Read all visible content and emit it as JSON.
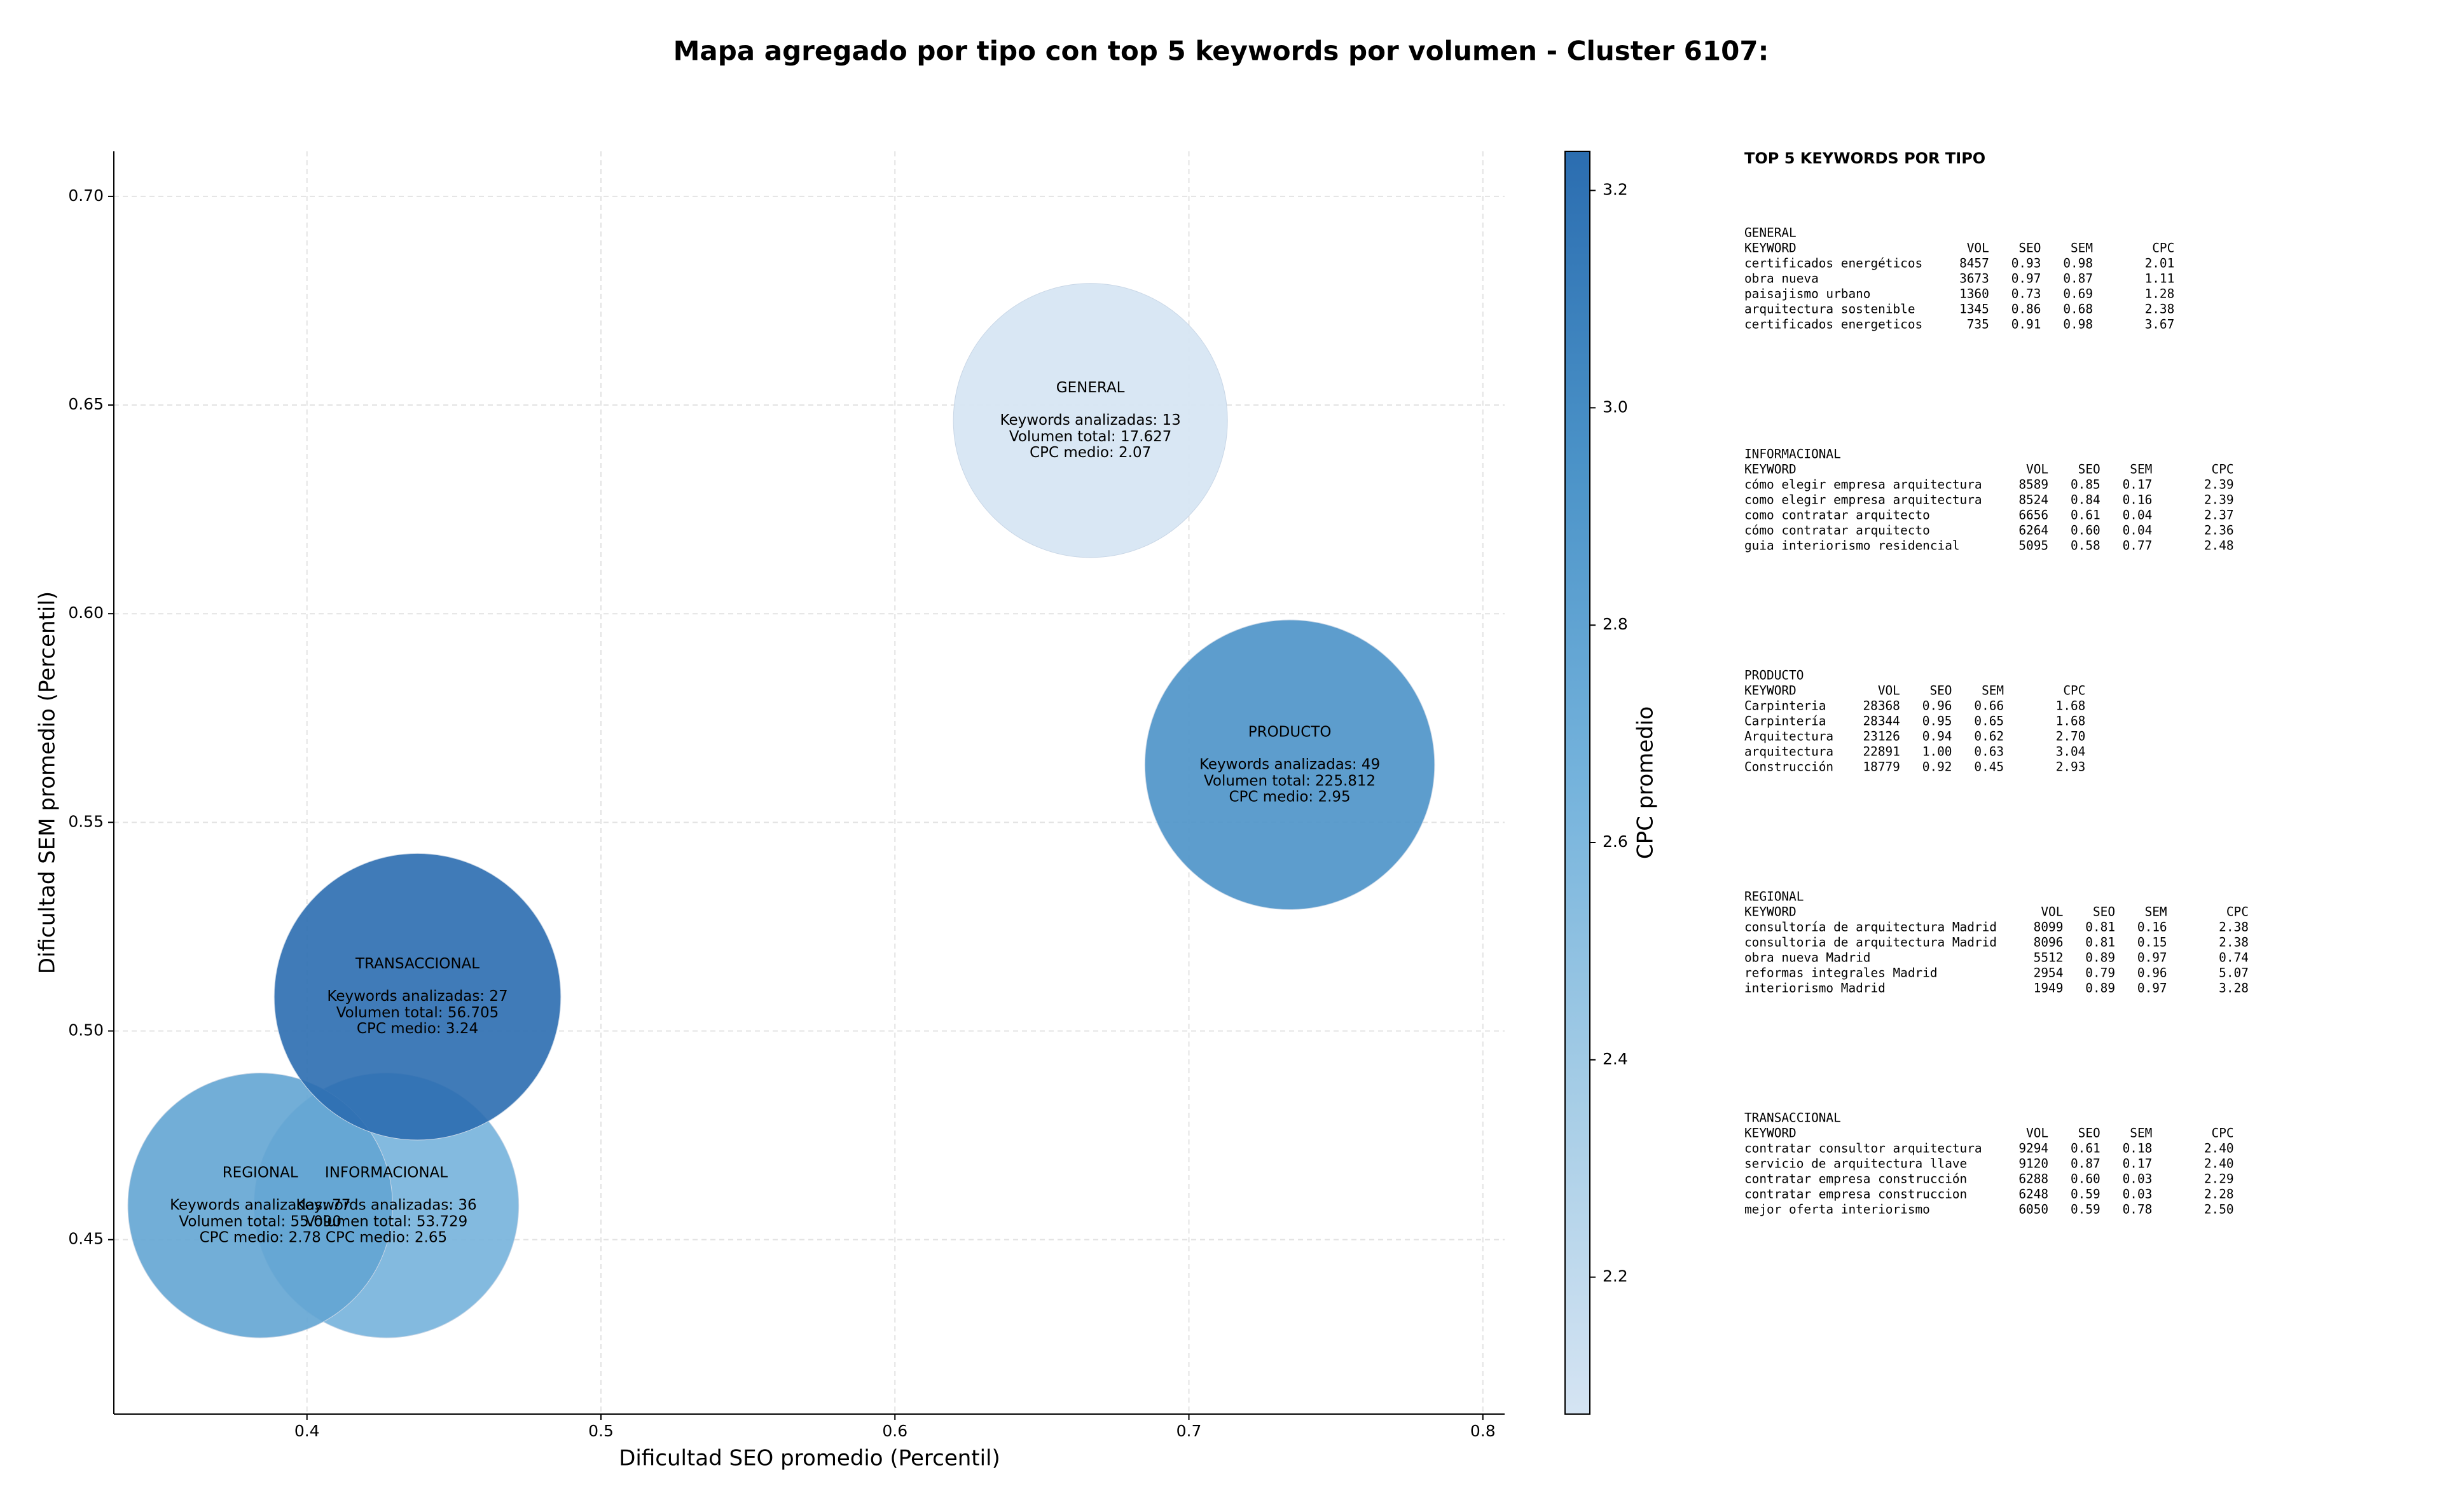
{
  "chart_data": {
    "type": "bubble",
    "title": "Mapa agregado por tipo con top 5 keywords por volumen - Cluster 6107:",
    "x_label": "Dificultad SEO promedio (Percentil)",
    "y_label": "Dificultad SEM promedio (Percentil)",
    "colorbar_label": "CPC promedio",
    "x": [
      0.6665,
      0.427,
      0.7343,
      0.3841,
      0.4376
    ],
    "y": [
      0.6463,
      0.4582,
      0.5638,
      0.4582,
      0.5082
    ],
    "cpc": [
      2.07,
      2.65,
      2.95,
      2.78,
      3.24
    ],
    "sizes": [
      88,
      85,
      93,
      85,
      92
    ],
    "labels": [
      [
        "GENERAL",
        "Keywords analizadas: 13",
        "Volumen total: 17.627",
        "CPC medio: 2.07"
      ],
      [
        "INFORMACIONAL",
        "Keywords analizadas: 36",
        "Volumen total: 53.729",
        "CPC medio: 2.65"
      ],
      [
        "PRODUCTO",
        "Keywords analizadas: 49",
        "Volumen total: 225.812",
        "CPC medio: 2.95"
      ],
      [
        "REGIONAL",
        "Keywords analizadas: 77",
        "Volumen total: 55.090",
        "CPC medio: 2.78"
      ],
      [
        "TRANSACCIONAL",
        "Keywords analizadas: 27",
        "Volumen total: 56.705",
        "CPC medio: 3.24"
      ]
    ],
    "xlim": [
      0.3343,
      0.8074
    ],
    "ylim": [
      0.4082,
      0.7108
    ],
    "xticks": [
      0.4,
      0.5,
      0.6,
      0.7,
      0.8
    ],
    "yticks": [
      {
        "value": 0.45,
        "label": "0.45"
      },
      {
        "value": 0.5,
        "label": "0.50"
      },
      {
        "value": 0.55,
        "label": "0.55"
      },
      {
        "value": 0.6,
        "label": "0.60"
      },
      {
        "value": 0.65,
        "label": "0.65"
      },
      {
        "value": 0.7,
        "label": "0.70"
      }
    ],
    "clim": [
      2.074,
      3.236
    ],
    "cticks": [
      2.2,
      2.4,
      2.6,
      2.8,
      {
        "value": 3.0,
        "label": "3.0"
      },
      3.2
    ],
    "cmap": [
      "#d5e4f3",
      "#a6cde6",
      "#75b3dc",
      "#4b93c8",
      "#2b6db0"
    ],
    "grid": true,
    "bubble_alpha": 0.9
  },
  "keywords_panel": {
    "title": "TOP 5 KEYWORDS POR TIPO",
    "header": [
      "KEYWORD",
      "VOL",
      "SEO",
      "SEM",
      "CPC"
    ],
    "sections": [
      {
        "name": "GENERAL",
        "rows": [
          [
            "certificados energéticos",
            "8457",
            "0.93",
            "0.98",
            "2.01"
          ],
          [
            "obra nueva",
            "3673",
            "0.97",
            "0.87",
            "1.11"
          ],
          [
            "paisajismo urbano",
            "1360",
            "0.73",
            "0.69",
            "1.28"
          ],
          [
            "arquitectura sostenible",
            "1345",
            "0.86",
            "0.68",
            "2.38"
          ],
          [
            "certificados energeticos",
            "735",
            "0.91",
            "0.98",
            "3.67"
          ]
        ]
      },
      {
        "name": "INFORMACIONAL",
        "rows": [
          [
            "cómo elegir empresa arquitectura",
            "8589",
            "0.85",
            "0.17",
            "2.39"
          ],
          [
            "como elegir empresa arquitectura",
            "8524",
            "0.84",
            "0.16",
            "2.39"
          ],
          [
            "como contratar arquitecto",
            "6656",
            "0.61",
            "0.04",
            "2.37"
          ],
          [
            "cómo contratar arquitecto",
            "6264",
            "0.60",
            "0.04",
            "2.36"
          ],
          [
            "guia interiorismo residencial",
            "5095",
            "0.58",
            "0.77",
            "2.48"
          ]
        ]
      },
      {
        "name": "PRODUCTO",
        "rows": [
          [
            "Carpinteria",
            "28368",
            "0.96",
            "0.66",
            "1.68"
          ],
          [
            "Carpintería",
            "28344",
            "0.95",
            "0.65",
            "1.68"
          ],
          [
            "Arquitectura",
            "23126",
            "0.94",
            "0.62",
            "2.70"
          ],
          [
            "arquitectura",
            "22891",
            "1.00",
            "0.63",
            "3.04"
          ],
          [
            "Construcción",
            "18779",
            "0.92",
            "0.45",
            "2.93"
          ]
        ]
      },
      {
        "name": "REGIONAL",
        "rows": [
          [
            "consultoría de arquitectura Madrid",
            "8099",
            "0.81",
            "0.16",
            "2.38"
          ],
          [
            "consultoria de arquitectura Madrid",
            "8096",
            "0.81",
            "0.15",
            "2.38"
          ],
          [
            "obra nueva Madrid",
            "5512",
            "0.89",
            "0.97",
            "0.74"
          ],
          [
            "reformas integrales Madrid",
            "2954",
            "0.79",
            "0.96",
            "5.07"
          ],
          [
            "interiorismo Madrid",
            "1949",
            "0.89",
            "0.97",
            "3.28"
          ]
        ]
      },
      {
        "name": "TRANSACCIONAL",
        "rows": [
          [
            "contratar consultor arquitectura",
            "9294",
            "0.61",
            "0.18",
            "2.40"
          ],
          [
            "servicio de arquitectura llave",
            "9120",
            "0.87",
            "0.17",
            "2.40"
          ],
          [
            "contratar empresa construcción",
            "6288",
            "0.60",
            "0.03",
            "2.29"
          ],
          [
            "contratar empresa construccion",
            "6248",
            "0.59",
            "0.03",
            "2.28"
          ],
          [
            "mejor oferta interiorismo",
            "6050",
            "0.59",
            "0.78",
            "2.50"
          ]
        ]
      }
    ]
  }
}
